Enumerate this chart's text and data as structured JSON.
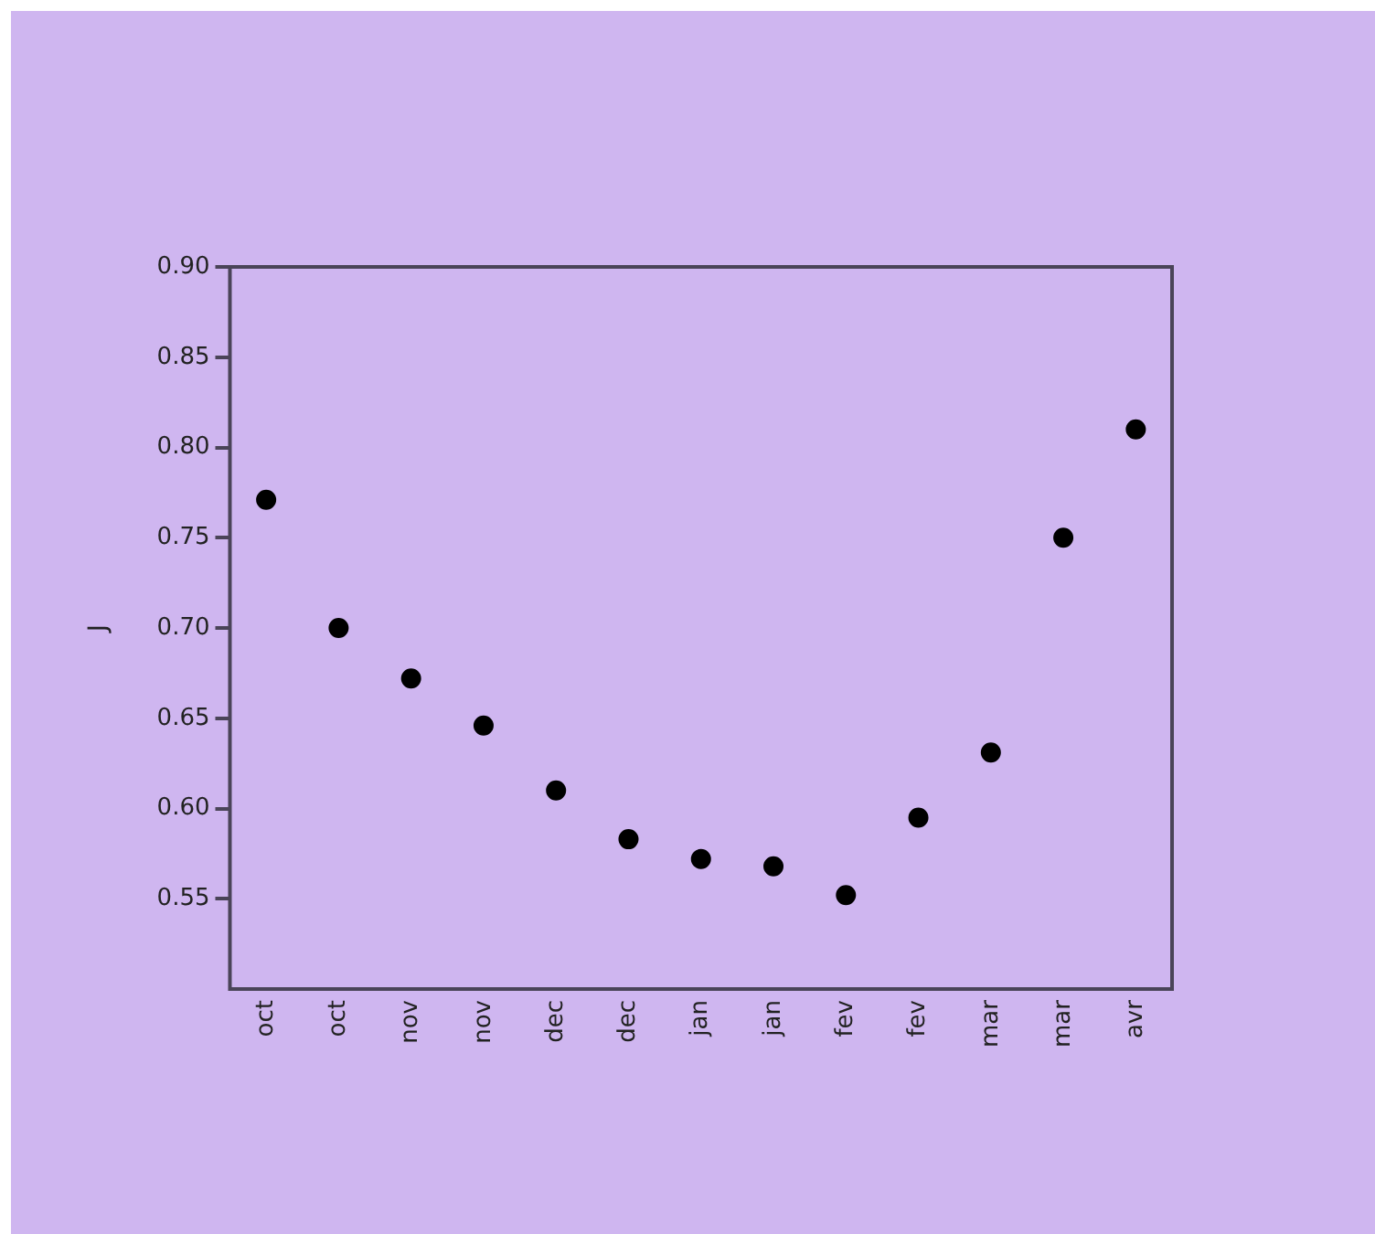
{
  "chart_data": {
    "type": "scatter",
    "ylabel": "J",
    "categories": [
      "oct",
      "oct",
      "nov",
      "nov",
      "dec",
      "dec",
      "jan",
      "jan",
      "fev",
      "fev",
      "mar",
      "mar",
      "avr"
    ],
    "series": [
      {
        "color": "#000000",
        "values": [
          0.771,
          0.7,
          0.672,
          0.646,
          0.61,
          0.583,
          0.572,
          0.568,
          0.552,
          0.595,
          0.631,
          0.75,
          0.81
        ]
      }
    ],
    "ylim": [
      0.5,
      0.9
    ],
    "yticks": [
      {
        "value": 0.55,
        "label": "0.55"
      },
      {
        "value": 0.6,
        "label": "0.60"
      },
      {
        "value": 0.65,
        "label": "0.65"
      },
      {
        "value": 0.7,
        "label": "0.70"
      },
      {
        "value": 0.75,
        "label": "0.75"
      },
      {
        "value": 0.8,
        "label": "0.80"
      },
      {
        "value": 0.85,
        "label": "0.85"
      },
      {
        "value": 0.9,
        "label": "0.90"
      }
    ],
    "grid": false,
    "legend": false,
    "marker": "circle"
  }
}
